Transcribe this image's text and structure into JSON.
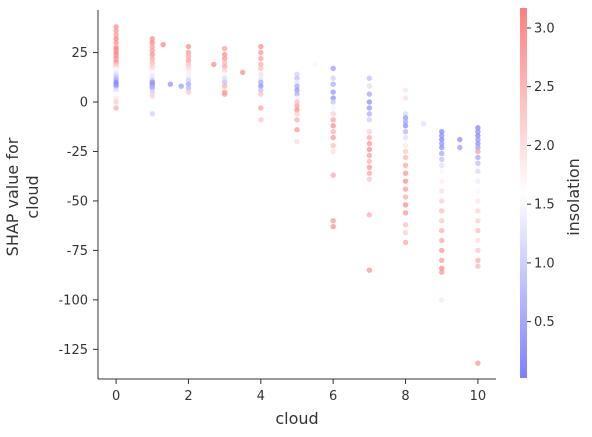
{
  "chart_data": {
    "type": "scatter",
    "title": "",
    "xlabel": "cloud",
    "ylabel": "SHAP value for\ncloud",
    "xlim": [
      -0.5,
      10.5
    ],
    "ylim": [
      -140,
      46.5
    ],
    "xticks": [
      0,
      2,
      4,
      6,
      8,
      10
    ],
    "xtick_labels": [
      "0",
      "2",
      "4",
      "6",
      "8",
      "10"
    ],
    "yticks": [
      25,
      0,
      -25,
      -50,
      -75,
      -100,
      -125
    ],
    "ytick_labels": [
      "25",
      "0",
      "-25",
      "-50",
      "-75",
      "-100",
      "-125"
    ],
    "grid": false,
    "colorbar": {
      "label": "insolation",
      "range": [
        0.02,
        3.17
      ],
      "ticks": [
        0.5,
        1.0,
        1.5,
        2.0,
        2.5,
        3.0
      ],
      "tick_labels": [
        "0.5",
        "1.0",
        "1.5",
        "2.0",
        "2.5",
        "3.0"
      ],
      "colormap": [
        "#7f7fff",
        "#ffffff",
        "#ff7f7f"
      ]
    },
    "points": [
      {
        "x": 0,
        "y": 38,
        "c": 3.0
      },
      {
        "x": 0,
        "y": 36,
        "c": 2.9
      },
      {
        "x": 0,
        "y": 34,
        "c": 2.8
      },
      {
        "x": 0,
        "y": 32,
        "c": 3.1
      },
      {
        "x": 0,
        "y": 30,
        "c": 3.0
      },
      {
        "x": 0,
        "y": 28,
        "c": 2.7
      },
      {
        "x": 0,
        "y": 27,
        "c": 3.1
      },
      {
        "x": 0,
        "y": 26,
        "c": 3.0
      },
      {
        "x": 0,
        "y": 25,
        "c": 2.9
      },
      {
        "x": 0,
        "y": 24,
        "c": 3.1
      },
      {
        "x": 0,
        "y": 23,
        "c": 2.8
      },
      {
        "x": 0,
        "y": 22,
        "c": 3.0
      },
      {
        "x": 0,
        "y": 21,
        "c": 2.6
      },
      {
        "x": 0,
        "y": 20,
        "c": 3.0
      },
      {
        "x": 0,
        "y": 19,
        "c": 2.4
      },
      {
        "x": 0,
        "y": 18,
        "c": 2.2
      },
      {
        "x": 0,
        "y": 17,
        "c": 1.9
      },
      {
        "x": 0,
        "y": 16,
        "c": 1.6
      },
      {
        "x": 0,
        "y": 15,
        "c": 1.4
      },
      {
        "x": 0,
        "y": 14,
        "c": 1.2
      },
      {
        "x": 0,
        "y": 13,
        "c": 1.0
      },
      {
        "x": 0,
        "y": 12,
        "c": 0.8
      },
      {
        "x": 0,
        "y": 11,
        "c": 0.6
      },
      {
        "x": 0,
        "y": 10,
        "c": 0.2
      },
      {
        "x": 0,
        "y": 9,
        "c": 0.1
      },
      {
        "x": 0,
        "y": 8,
        "c": 0.3
      },
      {
        "x": 0,
        "y": 6,
        "c": 1.1
      },
      {
        "x": 0,
        "y": 4,
        "c": 1.6
      },
      {
        "x": 0,
        "y": 2,
        "c": 1.9
      },
      {
        "x": 0,
        "y": 0,
        "c": 2.2
      },
      {
        "x": 0,
        "y": -3,
        "c": 2.6
      },
      {
        "x": 1,
        "y": 32,
        "c": 3.0
      },
      {
        "x": 1,
        "y": 30,
        "c": 3.1
      },
      {
        "x": 1,
        "y": 28,
        "c": 2.8
      },
      {
        "x": 1,
        "y": 26,
        "c": 2.9
      },
      {
        "x": 1,
        "y": 24,
        "c": 3.0
      },
      {
        "x": 1,
        "y": 22,
        "c": 2.7
      },
      {
        "x": 1,
        "y": 20,
        "c": 2.5
      },
      {
        "x": 1,
        "y": 18,
        "c": 2.3
      },
      {
        "x": 1,
        "y": 17,
        "c": 2.0
      },
      {
        "x": 1,
        "y": 15,
        "c": 1.7
      },
      {
        "x": 1,
        "y": 13,
        "c": 1.3
      },
      {
        "x": 1,
        "y": 11,
        "c": 0.9
      },
      {
        "x": 1,
        "y": 10,
        "c": 0.3
      },
      {
        "x": 1,
        "y": 9,
        "c": 0.2
      },
      {
        "x": 1,
        "y": 8,
        "c": 0.4
      },
      {
        "x": 1,
        "y": 7,
        "c": 0.6
      },
      {
        "x": 1,
        "y": 5,
        "c": 1.0
      },
      {
        "x": 1,
        "y": 3,
        "c": 2.2
      },
      {
        "x": 1,
        "y": -6,
        "c": 1.0
      },
      {
        "x": 1.3,
        "y": 29,
        "c": 3.1
      },
      {
        "x": 1.5,
        "y": 9,
        "c": 0.3
      },
      {
        "x": 1.8,
        "y": 8,
        "c": 0.4
      },
      {
        "x": 2,
        "y": 28,
        "c": 3.0
      },
      {
        "x": 2,
        "y": 25,
        "c": 2.9
      },
      {
        "x": 2,
        "y": 23,
        "c": 2.7
      },
      {
        "x": 2,
        "y": 21,
        "c": 2.8
      },
      {
        "x": 2,
        "y": 19,
        "c": 2.4
      },
      {
        "x": 2,
        "y": 17,
        "c": 2.1
      },
      {
        "x": 2,
        "y": 15,
        "c": 1.8
      },
      {
        "x": 2,
        "y": 13,
        "c": 1.4
      },
      {
        "x": 2,
        "y": 11,
        "c": 1.0
      },
      {
        "x": 2,
        "y": 9,
        "c": 0.5
      },
      {
        "x": 2,
        "y": 7,
        "c": 0.7
      },
      {
        "x": 2,
        "y": 5,
        "c": 2.3
      },
      {
        "x": 2.7,
        "y": 19,
        "c": 3.0
      },
      {
        "x": 3,
        "y": 27,
        "c": 2.8
      },
      {
        "x": 3,
        "y": 24,
        "c": 3.0
      },
      {
        "x": 3,
        "y": 22,
        "c": 2.9
      },
      {
        "x": 3,
        "y": 20,
        "c": 2.5
      },
      {
        "x": 3,
        "y": 18,
        "c": 2.7
      },
      {
        "x": 3,
        "y": 16,
        "c": 2.2
      },
      {
        "x": 3,
        "y": 14,
        "c": 1.7
      },
      {
        "x": 3,
        "y": 12,
        "c": 1.2
      },
      {
        "x": 3,
        "y": 10,
        "c": 0.8
      },
      {
        "x": 3,
        "y": 8,
        "c": 2.6
      },
      {
        "x": 3,
        "y": 5,
        "c": 2.8
      },
      {
        "x": 3,
        "y": 4,
        "c": 2.9
      },
      {
        "x": 3.5,
        "y": 15,
        "c": 3.0
      },
      {
        "x": 4,
        "y": 28,
        "c": 3.0
      },
      {
        "x": 4,
        "y": 25,
        "c": 2.9
      },
      {
        "x": 4,
        "y": 22,
        "c": 2.8
      },
      {
        "x": 4,
        "y": 19,
        "c": 2.6
      },
      {
        "x": 4,
        "y": 17,
        "c": 2.4
      },
      {
        "x": 4,
        "y": 14,
        "c": 2.0
      },
      {
        "x": 4,
        "y": 12,
        "c": 1.3
      },
      {
        "x": 4,
        "y": 10,
        "c": 0.5
      },
      {
        "x": 4,
        "y": 8,
        "c": 0.2
      },
      {
        "x": 4,
        "y": 6,
        "c": 0.8
      },
      {
        "x": 4,
        "y": 4,
        "c": 2.4
      },
      {
        "x": 4,
        "y": -3,
        "c": 2.7
      },
      {
        "x": 4,
        "y": -9,
        "c": 2.3
      },
      {
        "x": 5,
        "y": 14,
        "c": 1.0
      },
      {
        "x": 5,
        "y": 12,
        "c": 0.8
      },
      {
        "x": 5,
        "y": 10,
        "c": 1.3
      },
      {
        "x": 5,
        "y": 8,
        "c": 0.5
      },
      {
        "x": 5,
        "y": 6,
        "c": 0.3
      },
      {
        "x": 5,
        "y": 4,
        "c": 0.6
      },
      {
        "x": 5,
        "y": 2,
        "c": 1.8
      },
      {
        "x": 5,
        "y": 0,
        "c": 2.4
      },
      {
        "x": 5,
        "y": -2,
        "c": 2.8
      },
      {
        "x": 5,
        "y": -4,
        "c": 3.0
      },
      {
        "x": 5,
        "y": -6,
        "c": 2.2
      },
      {
        "x": 5,
        "y": -9,
        "c": 2.6
      },
      {
        "x": 5,
        "y": -14,
        "c": 2.9
      },
      {
        "x": 5,
        "y": -20,
        "c": 2.0
      },
      {
        "x": 5.5,
        "y": 19,
        "c": 1.7
      },
      {
        "x": 6,
        "y": 17,
        "c": 0.4
      },
      {
        "x": 6,
        "y": 12,
        "c": 1.0
      },
      {
        "x": 6,
        "y": 9,
        "c": 0.6
      },
      {
        "x": 6,
        "y": 5,
        "c": 0.3
      },
      {
        "x": 6,
        "y": 2,
        "c": 0.2
      },
      {
        "x": 6,
        "y": 0,
        "c": 0.9
      },
      {
        "x": 6,
        "y": -3,
        "c": 1.5
      },
      {
        "x": 6,
        "y": -6,
        "c": 2.2
      },
      {
        "x": 6,
        "y": -9,
        "c": 2.8
      },
      {
        "x": 6,
        "y": -12,
        "c": 3.0
      },
      {
        "x": 6,
        "y": -15,
        "c": 2.6
      },
      {
        "x": 6,
        "y": -18,
        "c": 2.9
      },
      {
        "x": 6,
        "y": -22,
        "c": 2.4
      },
      {
        "x": 6,
        "y": -25,
        "c": 2.0
      },
      {
        "x": 6,
        "y": -37,
        "c": 2.7
      },
      {
        "x": 6,
        "y": -60,
        "c": 2.9
      },
      {
        "x": 6,
        "y": -63,
        "c": 3.0
      },
      {
        "x": 7,
        "y": 12,
        "c": 0.8
      },
      {
        "x": 7,
        "y": 8,
        "c": 1.2
      },
      {
        "x": 7,
        "y": 4,
        "c": 0.5
      },
      {
        "x": 7,
        "y": 0,
        "c": 0.2
      },
      {
        "x": 7,
        "y": -3,
        "c": 0.3
      },
      {
        "x": 7,
        "y": -6,
        "c": 0.6
      },
      {
        "x": 7,
        "y": -9,
        "c": 1.0
      },
      {
        "x": 7,
        "y": -12,
        "c": 1.6
      },
      {
        "x": 7,
        "y": -15,
        "c": 2.2
      },
      {
        "x": 7,
        "y": -18,
        "c": 2.6
      },
      {
        "x": 7,
        "y": -21,
        "c": 2.9
      },
      {
        "x": 7,
        "y": -24,
        "c": 3.0
      },
      {
        "x": 7,
        "y": -27,
        "c": 2.8
      },
      {
        "x": 7,
        "y": -30,
        "c": 2.5
      },
      {
        "x": 7,
        "y": -33,
        "c": 2.9
      },
      {
        "x": 7,
        "y": -36,
        "c": 2.7
      },
      {
        "x": 7,
        "y": -39,
        "c": 2.3
      },
      {
        "x": 7,
        "y": -57,
        "c": 2.6
      },
      {
        "x": 7,
        "y": -85,
        "c": 2.9
      },
      {
        "x": 8,
        "y": 6,
        "c": 1.9
      },
      {
        "x": 8,
        "y": 2,
        "c": 2.0
      },
      {
        "x": 8,
        "y": -2,
        "c": 1.6
      },
      {
        "x": 8,
        "y": -6,
        "c": 1.1
      },
      {
        "x": 8,
        "y": -8,
        "c": 0.3
      },
      {
        "x": 8,
        "y": -10,
        "c": 0.5
      },
      {
        "x": 8,
        "y": -12,
        "c": 0.2
      },
      {
        "x": 8,
        "y": -15,
        "c": 0.7
      },
      {
        "x": 8,
        "y": -18,
        "c": 1.2
      },
      {
        "x": 8,
        "y": -22,
        "c": 1.9
      },
      {
        "x": 8,
        "y": -25,
        "c": 2.3
      },
      {
        "x": 8,
        "y": -28,
        "c": 2.5
      },
      {
        "x": 8,
        "y": -32,
        "c": 2.7
      },
      {
        "x": 8,
        "y": -36,
        "c": 2.9
      },
      {
        "x": 8,
        "y": -40,
        "c": 3.0
      },
      {
        "x": 8,
        "y": -44,
        "c": 2.8
      },
      {
        "x": 8,
        "y": -48,
        "c": 2.6
      },
      {
        "x": 8,
        "y": -52,
        "c": 3.0
      },
      {
        "x": 8,
        "y": -56,
        "c": 2.9
      },
      {
        "x": 8,
        "y": -62,
        "c": 2.4
      },
      {
        "x": 8,
        "y": -66,
        "c": 2.2
      },
      {
        "x": 8,
        "y": -71,
        "c": 2.7
      },
      {
        "x": 8.5,
        "y": -11,
        "c": 1.2
      },
      {
        "x": 9,
        "y": -15,
        "c": 0.1
      },
      {
        "x": 9,
        "y": -17,
        "c": 0.2
      },
      {
        "x": 9,
        "y": -19,
        "c": 0.1
      },
      {
        "x": 9,
        "y": -21,
        "c": 0.3
      },
      {
        "x": 9,
        "y": -23,
        "c": 0.2
      },
      {
        "x": 9,
        "y": -26,
        "c": 0.5
      },
      {
        "x": 9,
        "y": -29,
        "c": 0.8
      },
      {
        "x": 9,
        "y": -32,
        "c": 1.2
      },
      {
        "x": 9,
        "y": -35,
        "c": 1.5
      },
      {
        "x": 9,
        "y": -40,
        "c": 1.8
      },
      {
        "x": 9,
        "y": -45,
        "c": 2.0
      },
      {
        "x": 9,
        "y": -50,
        "c": 2.2
      },
      {
        "x": 9,
        "y": -55,
        "c": 2.4
      },
      {
        "x": 9,
        "y": -60,
        "c": 2.3
      },
      {
        "x": 9,
        "y": -65,
        "c": 2.6
      },
      {
        "x": 9,
        "y": -70,
        "c": 2.7
      },
      {
        "x": 9,
        "y": -75,
        "c": 2.9
      },
      {
        "x": 9,
        "y": -80,
        "c": 2.8
      },
      {
        "x": 9,
        "y": -84,
        "c": 3.0
      },
      {
        "x": 9,
        "y": -86,
        "c": 2.9
      },
      {
        "x": 9,
        "y": -100,
        "c": 1.9
      },
      {
        "x": 9.5,
        "y": -19,
        "c": 0.2
      },
      {
        "x": 9.5,
        "y": -23,
        "c": 0.4
      },
      {
        "x": 10,
        "y": -13,
        "c": 0.1
      },
      {
        "x": 10,
        "y": -15,
        "c": 0.2
      },
      {
        "x": 10,
        "y": -17,
        "c": 0.1
      },
      {
        "x": 10,
        "y": -19,
        "c": 0.3
      },
      {
        "x": 10,
        "y": -21,
        "c": 0.2
      },
      {
        "x": 10,
        "y": -23,
        "c": 0.4
      },
      {
        "x": 10,
        "y": -25,
        "c": 2.8
      },
      {
        "x": 10,
        "y": -28,
        "c": 0.5
      },
      {
        "x": 10,
        "y": -31,
        "c": 0.8
      },
      {
        "x": 10,
        "y": -35,
        "c": 1.1
      },
      {
        "x": 10,
        "y": -40,
        "c": 1.4
      },
      {
        "x": 10,
        "y": -45,
        "c": 1.7
      },
      {
        "x": 10,
        "y": -50,
        "c": 1.9
      },
      {
        "x": 10,
        "y": -55,
        "c": 2.1
      },
      {
        "x": 10,
        "y": -60,
        "c": 2.2
      },
      {
        "x": 10,
        "y": -65,
        "c": 2.4
      },
      {
        "x": 10,
        "y": -70,
        "c": 2.0
      },
      {
        "x": 10,
        "y": -75,
        "c": 2.3
      },
      {
        "x": 10,
        "y": -80,
        "c": 2.6
      },
      {
        "x": 10,
        "y": -83,
        "c": 2.5
      },
      {
        "x": 10,
        "y": -132,
        "c": 2.9
      }
    ]
  }
}
